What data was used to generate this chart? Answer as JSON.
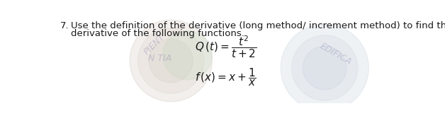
{
  "background_color": "#ffffff",
  "text_color": "#1a1a1a",
  "blue_text_color": "#3333aa",
  "item_number": "7.",
  "main_text_line1": "Use the definition of the derivative (long method/ increment method) to find the",
  "main_text_line2": "derivative of the following functions.",
  "formula1": "$Q\\,(t) = \\dfrac{t^2}{t+2}$",
  "formula2": "$f\\,(x) = x + \\dfrac{1}{x}$",
  "watermark_left_color": "#b8a898",
  "watermark_right_color": "#a8b8c8",
  "watermark_green_color": "#c8d8c0",
  "fig_width": 6.28,
  "fig_height": 1.64,
  "dpi": 100,
  "text_fontsize": 9.5,
  "formula_fontsize": 11,
  "item_fontsize": 9.5
}
